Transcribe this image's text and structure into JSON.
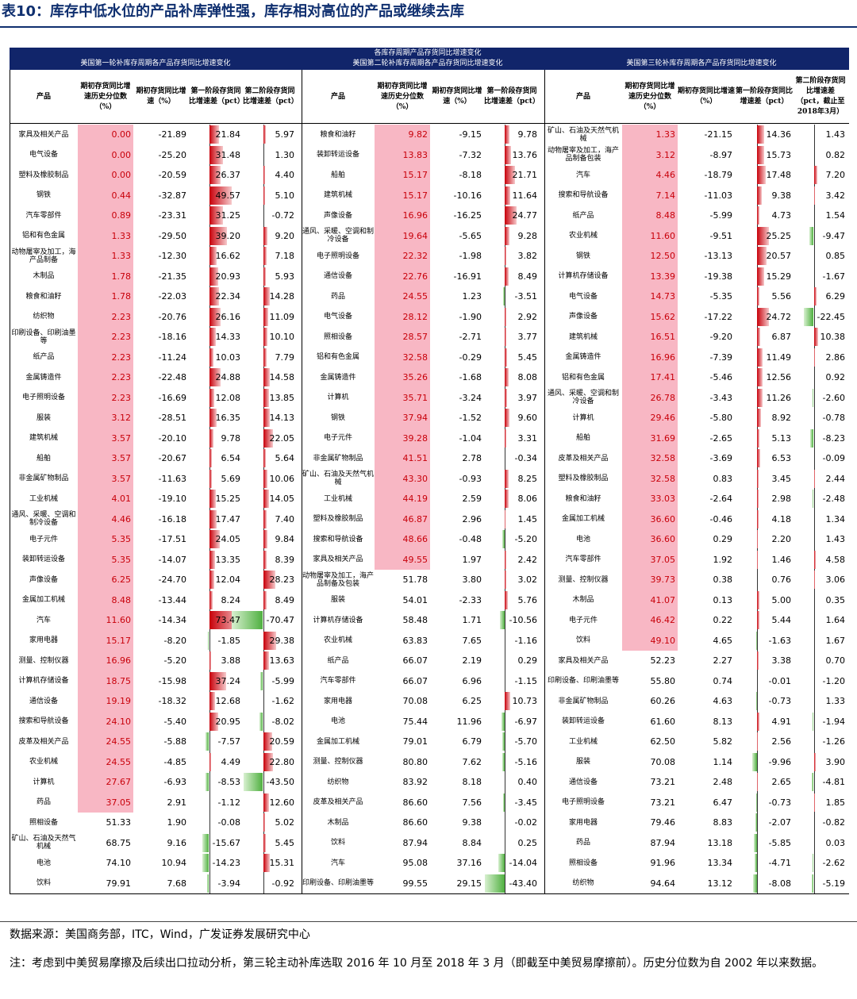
{
  "title": "表10：库存中低水位的产品补库弹性强，库存相对高位的产品或继续去库",
  "header": {
    "panel1_title": "美国第一轮补库存周期各产品存货同比增速变化",
    "center_title_line1": "各库存周期产品存货同比增速变化",
    "panel2_title": "美国第二轮补库存周期各产品存货同比增速变化",
    "panel3_title": "美国第三轮补库存周期各产品存货同比增速变化"
  },
  "columns": {
    "product": "产品",
    "pct": "期初存货同比增速历史分位数（%）",
    "yoy": "期初存货同比增速（%）",
    "d1": "第一阶段存货同比增速差（pct）",
    "d2": "第二阶段存货同比增速差（pct）",
    "d2_p3": "第二阶段存货同比增速差（pct，截止至2018年3月）"
  },
  "colors": {
    "pct_fill": "#f8b7c4",
    "bar_pos": "#c8000a",
    "bar_neg": "#4fb040",
    "header_bg": "#11256a"
  },
  "chart_data": {
    "type": "table",
    "bar_range": [
      -45,
      75
    ],
    "panels": [
      {
        "rows": [
          {
            "name": "家具及相关产品",
            "pct": "0.00",
            "yoy": "-21.89",
            "d1": "21.84",
            "d2": "5.97"
          },
          {
            "name": "电气设备",
            "pct": "0.00",
            "yoy": "-25.20",
            "d1": "31.48",
            "d2": "1.30"
          },
          {
            "name": "塑料及橡胶制品",
            "pct": "0.00",
            "yoy": "-20.59",
            "d1": "26.37",
            "d2": "4.40"
          },
          {
            "name": "钢铁",
            "pct": "0.44",
            "yoy": "-32.87",
            "d1": "49.57",
            "d2": "5.10"
          },
          {
            "name": "汽车零部件",
            "pct": "0.89",
            "yoy": "-23.31",
            "d1": "31.25",
            "d2": "-0.72"
          },
          {
            "name": "铝和有色金属",
            "pct": "1.33",
            "yoy": "-29.50",
            "d1": "39.20",
            "d2": "9.20"
          },
          {
            "name": "动物屠宰及加工，海产品制备",
            "pct": "1.33",
            "yoy": "-12.30",
            "d1": "16.62",
            "d2": "7.18"
          },
          {
            "name": "木制品",
            "pct": "1.78",
            "yoy": "-21.35",
            "d1": "20.93",
            "d2": "5.93"
          },
          {
            "name": "粮食和油籽",
            "pct": "1.78",
            "yoy": "-22.03",
            "d1": "22.34",
            "d2": "14.28"
          },
          {
            "name": "纺织物",
            "pct": "2.23",
            "yoy": "-20.76",
            "d1": "26.16",
            "d2": "11.09"
          },
          {
            "name": "印刷设备、印刷油墨等",
            "pct": "2.23",
            "yoy": "-18.16",
            "d1": "14.33",
            "d2": "10.10"
          },
          {
            "name": "纸产品",
            "pct": "2.23",
            "yoy": "-11.24",
            "d1": "10.03",
            "d2": "7.79"
          },
          {
            "name": "金属铸造件",
            "pct": "2.23",
            "yoy": "-22.48",
            "d1": "24.88",
            "d2": "14.58"
          },
          {
            "name": "电子照明设备",
            "pct": "2.23",
            "yoy": "-16.69",
            "d1": "12.08",
            "d2": "13.85"
          },
          {
            "name": "服装",
            "pct": "3.12",
            "yoy": "-28.51",
            "d1": "16.35",
            "d2": "14.13"
          },
          {
            "name": "建筑机械",
            "pct": "3.57",
            "yoy": "-20.10",
            "d1": "9.78",
            "d2": "22.05"
          },
          {
            "name": "船舶",
            "pct": "3.57",
            "yoy": "-20.67",
            "d1": "6.54",
            "d2": "5.64"
          },
          {
            "name": "非金属矿物制品",
            "pct": "3.57",
            "yoy": "-11.63",
            "d1": "5.69",
            "d2": "10.06"
          },
          {
            "name": "工业机械",
            "pct": "4.01",
            "yoy": "-19.10",
            "d1": "15.25",
            "d2": "14.05"
          },
          {
            "name": "通风、采暖、空调和制冷设备",
            "pct": "4.46",
            "yoy": "-16.18",
            "d1": "17.47",
            "d2": "7.40"
          },
          {
            "name": "电子元件",
            "pct": "5.35",
            "yoy": "-17.51",
            "d1": "24.05",
            "d2": "9.84"
          },
          {
            "name": "装卸转运设备",
            "pct": "5.35",
            "yoy": "-14.07",
            "d1": "13.35",
            "d2": "8.39"
          },
          {
            "name": "声像设备",
            "pct": "6.25",
            "yoy": "-24.70",
            "d1": "12.04",
            "d2": "28.23"
          },
          {
            "name": "金属加工机械",
            "pct": "8.48",
            "yoy": "-13.44",
            "d1": "8.24",
            "d2": "8.49"
          },
          {
            "name": "汽车",
            "pct": "11.60",
            "yoy": "-14.34",
            "d1": "73.47",
            "d2": "-70.47"
          },
          {
            "name": "家用电器",
            "pct": "15.17",
            "yoy": "-8.20",
            "d1": "-1.85",
            "d2": "29.38"
          },
          {
            "name": "测量、控制仪器",
            "pct": "16.96",
            "yoy": "-5.20",
            "d1": "3.88",
            "d2": "13.63"
          },
          {
            "name": "计算机存储设备",
            "pct": "18.75",
            "yoy": "-15.98",
            "d1": "37.24",
            "d2": "-5.99"
          },
          {
            "name": "通信设备",
            "pct": "19.19",
            "yoy": "-18.32",
            "d1": "12.68",
            "d2": "-1.62"
          },
          {
            "name": "搜索和导航设备",
            "pct": "24.10",
            "yoy": "-5.40",
            "d1": "20.95",
            "d2": "-8.02"
          },
          {
            "name": "皮革及相关产品",
            "pct": "24.55",
            "yoy": "-5.88",
            "d1": "-7.57",
            "d2": "20.59"
          },
          {
            "name": "农业机械",
            "pct": "24.55",
            "yoy": "-4.85",
            "d1": "4.49",
            "d2": "22.80"
          },
          {
            "name": "计算机",
            "pct": "27.67",
            "yoy": "-6.93",
            "d1": "-8.53",
            "d2": "-43.50"
          },
          {
            "name": "药品",
            "pct": "37.05",
            "yoy": "2.91",
            "d1": "-1.12",
            "d2": "12.60"
          },
          {
            "name": "照相设备",
            "pct": "51.33",
            "yoy": "1.90",
            "d1": "-0.08",
            "d2": "5.02"
          },
          {
            "name": "矿山、石油及天然气机械",
            "pct": "68.75",
            "yoy": "9.16",
            "d1": "-15.67",
            "d2": "5.45"
          },
          {
            "name": "电池",
            "pct": "74.10",
            "yoy": "10.94",
            "d1": "-14.23",
            "d2": "15.31"
          },
          {
            "name": "饮料",
            "pct": "79.91",
            "yoy": "7.68",
            "d1": "-3.94",
            "d2": "-0.92"
          }
        ]
      },
      {
        "rows": [
          {
            "name": "粮食和油籽",
            "pct": "9.82",
            "yoy": "-9.15",
            "d1": "9.78"
          },
          {
            "name": "装卸转运设备",
            "pct": "13.83",
            "yoy": "-7.32",
            "d1": "13.76"
          },
          {
            "name": "船舶",
            "pct": "15.17",
            "yoy": "-8.18",
            "d1": "21.71"
          },
          {
            "name": "建筑机械",
            "pct": "15.17",
            "yoy": "-10.16",
            "d1": "11.64"
          },
          {
            "name": "声像设备",
            "pct": "16.96",
            "yoy": "-16.25",
            "d1": "24.77"
          },
          {
            "name": "通风、采暖、空调和制冷设备",
            "pct": "19.64",
            "yoy": "-5.65",
            "d1": "9.28"
          },
          {
            "name": "电子照明设备",
            "pct": "22.32",
            "yoy": "-1.98",
            "d1": "3.82"
          },
          {
            "name": "通信设备",
            "pct": "22.76",
            "yoy": "-16.91",
            "d1": "8.49"
          },
          {
            "name": "药品",
            "pct": "24.55",
            "yoy": "1.23",
            "d1": "-3.51"
          },
          {
            "name": "电气设备",
            "pct": "28.12",
            "yoy": "-1.90",
            "d1": "2.92"
          },
          {
            "name": "照相设备",
            "pct": "28.57",
            "yoy": "-2.71",
            "d1": "3.77"
          },
          {
            "name": "铝和有色金属",
            "pct": "32.58",
            "yoy": "-0.29",
            "d1": "5.45"
          },
          {
            "name": "金属铸造件",
            "pct": "35.26",
            "yoy": "-1.68",
            "d1": "8.08"
          },
          {
            "name": "计算机",
            "pct": "35.71",
            "yoy": "-3.24",
            "d1": "3.97"
          },
          {
            "name": "钢铁",
            "pct": "37.94",
            "yoy": "-1.52",
            "d1": "9.60"
          },
          {
            "name": "电子元件",
            "pct": "39.28",
            "yoy": "-1.04",
            "d1": "3.31"
          },
          {
            "name": "非金属矿物制品",
            "pct": "41.51",
            "yoy": "2.78",
            "d1": "-0.34"
          },
          {
            "name": "矿山、石油及天然气机械",
            "pct": "43.30",
            "yoy": "-0.93",
            "d1": "8.25"
          },
          {
            "name": "工业机械",
            "pct": "44.19",
            "yoy": "2.59",
            "d1": "8.06"
          },
          {
            "name": "塑料及橡胶制品",
            "pct": "46.87",
            "yoy": "2.96",
            "d1": "1.45"
          },
          {
            "name": "搜索和导航设备",
            "pct": "48.66",
            "yoy": "-0.48",
            "d1": "-5.20"
          },
          {
            "name": "家具及相关产品",
            "pct": "49.55",
            "yoy": "1.97",
            "d1": "2.42"
          },
          {
            "name": "动物屠宰及加工，海产品制备及包装",
            "pct": "51.78",
            "yoy": "3.80",
            "d1": "3.02"
          },
          {
            "name": "服装",
            "pct": "54.01",
            "yoy": "-2.33",
            "d1": "5.76"
          },
          {
            "name": "计算机存储设备",
            "pct": "58.48",
            "yoy": "1.71",
            "d1": "-10.56"
          },
          {
            "name": "农业机械",
            "pct": "63.83",
            "yoy": "7.65",
            "d1": "-1.16"
          },
          {
            "name": "纸产品",
            "pct": "66.07",
            "yoy": "2.19",
            "d1": "0.29"
          },
          {
            "name": "汽车零部件",
            "pct": "66.07",
            "yoy": "6.96",
            "d1": "-1.15"
          },
          {
            "name": "家用电器",
            "pct": "70.08",
            "yoy": "6.25",
            "d1": "10.73"
          },
          {
            "name": "电池",
            "pct": "75.44",
            "yoy": "11.96",
            "d1": "-6.97"
          },
          {
            "name": "金属加工机械",
            "pct": "79.01",
            "yoy": "6.79",
            "d1": "-5.70"
          },
          {
            "name": "测量、控制仪器",
            "pct": "80.80",
            "yoy": "7.62",
            "d1": "-5.16"
          },
          {
            "name": "纺织物",
            "pct": "83.92",
            "yoy": "8.18",
            "d1": "0.40"
          },
          {
            "name": "皮革及相关产品",
            "pct": "86.60",
            "yoy": "7.56",
            "d1": "-3.45"
          },
          {
            "name": "木制品",
            "pct": "86.60",
            "yoy": "9.38",
            "d1": "-0.02"
          },
          {
            "name": "饮料",
            "pct": "87.94",
            "yoy": "8.84",
            "d1": "0.25"
          },
          {
            "name": "汽车",
            "pct": "95.08",
            "yoy": "37.16",
            "d1": "-14.04"
          },
          {
            "name": "印刷设备、印刷油墨等",
            "pct": "99.55",
            "yoy": "29.15",
            "d1": "-43.40"
          }
        ]
      },
      {
        "rows": [
          {
            "name": "矿山、石油及天然气机械",
            "pct": "1.33",
            "yoy": "-21.15",
            "d1": "14.36",
            "d2": "1.43"
          },
          {
            "name": "动物屠宰及加工，海产品制备包装",
            "pct": "3.12",
            "yoy": "-8.97",
            "d1": "15.73",
            "d2": "0.82"
          },
          {
            "name": "汽车",
            "pct": "4.46",
            "yoy": "-18.79",
            "d1": "17.48",
            "d2": "7.20"
          },
          {
            "name": "搜索和导航设备",
            "pct": "7.14",
            "yoy": "-11.03",
            "d1": "9.38",
            "d2": "3.42"
          },
          {
            "name": "纸产品",
            "pct": "8.48",
            "yoy": "-5.99",
            "d1": "4.73",
            "d2": "1.54"
          },
          {
            "name": "农业机械",
            "pct": "11.60",
            "yoy": "-9.51",
            "d1": "25.25",
            "d2": "-9.47"
          },
          {
            "name": "钢铁",
            "pct": "12.50",
            "yoy": "-13.13",
            "d1": "20.57",
            "d2": "0.85"
          },
          {
            "name": "计算机存储设备",
            "pct": "13.39",
            "yoy": "-19.38",
            "d1": "15.29",
            "d2": "-1.67"
          },
          {
            "name": "电气设备",
            "pct": "14.73",
            "yoy": "-5.35",
            "d1": "5.56",
            "d2": "6.29"
          },
          {
            "name": "声像设备",
            "pct": "15.62",
            "yoy": "-17.22",
            "d1": "24.72",
            "d2": "-22.45"
          },
          {
            "name": "建筑机械",
            "pct": "16.51",
            "yoy": "-9.20",
            "d1": "6.87",
            "d2": "10.38"
          },
          {
            "name": "金属铸造件",
            "pct": "16.96",
            "yoy": "-7.39",
            "d1": "11.49",
            "d2": "2.86"
          },
          {
            "name": "铝和有色金属",
            "pct": "17.41",
            "yoy": "-5.46",
            "d1": "12.56",
            "d2": "0.92"
          },
          {
            "name": "通风、采暖、空调和制冷设备",
            "pct": "26.78",
            "yoy": "-3.43",
            "d1": "11.26",
            "d2": "-2.60"
          },
          {
            "name": "计算机",
            "pct": "29.46",
            "yoy": "-5.80",
            "d1": "8.92",
            "d2": "-0.78"
          },
          {
            "name": "船舶",
            "pct": "31.69",
            "yoy": "-2.65",
            "d1": "5.13",
            "d2": "-8.23"
          },
          {
            "name": "皮革及相关产品",
            "pct": "32.58",
            "yoy": "-3.69",
            "d1": "6.53",
            "d2": "-0.09"
          },
          {
            "name": "塑料及橡胶制品",
            "pct": "32.58",
            "yoy": "0.83",
            "d1": "3.45",
            "d2": "2.44"
          },
          {
            "name": "粮食和油籽",
            "pct": "33.03",
            "yoy": "-2.64",
            "d1": "2.98",
            "d2": "-2.48"
          },
          {
            "name": "金属加工机械",
            "pct": "36.60",
            "yoy": "-0.46",
            "d1": "4.18",
            "d2": "1.34"
          },
          {
            "name": "电池",
            "pct": "36.60",
            "yoy": "0.29",
            "d1": "2.20",
            "d2": "1.43"
          },
          {
            "name": "汽车零部件",
            "pct": "37.05",
            "yoy": "1.92",
            "d1": "1.46",
            "d2": "4.58"
          },
          {
            "name": "测量、控制仪器",
            "pct": "39.73",
            "yoy": "0.38",
            "d1": "0.76",
            "d2": "3.06"
          },
          {
            "name": "木制品",
            "pct": "41.07",
            "yoy": "0.13",
            "d1": "5.00",
            "d2": "0.35"
          },
          {
            "name": "电子元件",
            "pct": "46.42",
            "yoy": "0.22",
            "d1": "5.44",
            "d2": "1.64"
          },
          {
            "name": "饮料",
            "pct": "49.10",
            "yoy": "4.65",
            "d1": "-1.63",
            "d2": "1.67"
          },
          {
            "name": "家具及相关产品",
            "pct": "52.23",
            "yoy": "2.27",
            "d1": "3.38",
            "d2": "0.70"
          },
          {
            "name": "印刷设备、印刷油墨等",
            "pct": "55.80",
            "yoy": "0.74",
            "d1": "-0.01",
            "d2": "-1.20"
          },
          {
            "name": "非金属矿物制品",
            "pct": "60.26",
            "yoy": "4.63",
            "d1": "-0.73",
            "d2": "1.33"
          },
          {
            "name": "装卸转运设备",
            "pct": "61.60",
            "yoy": "8.13",
            "d1": "4.91",
            "d2": "-1.94"
          },
          {
            "name": "工业机械",
            "pct": "62.50",
            "yoy": "5.82",
            "d1": "2.56",
            "d2": "-1.26"
          },
          {
            "name": "服装",
            "pct": "70.08",
            "yoy": "1.14",
            "d1": "-9.96",
            "d2": "3.90"
          },
          {
            "name": "通信设备",
            "pct": "73.21",
            "yoy": "2.48",
            "d1": "2.65",
            "d2": "-4.81"
          },
          {
            "name": "电子照明设备",
            "pct": "73.21",
            "yoy": "6.47",
            "d1": "-0.73",
            "d2": "1.85"
          },
          {
            "name": "家用电器",
            "pct": "79.46",
            "yoy": "8.83",
            "d1": "-2.07",
            "d2": "-0.82"
          },
          {
            "name": "药品",
            "pct": "87.94",
            "yoy": "13.18",
            "d1": "-5.85",
            "d2": "0.03"
          },
          {
            "name": "照相设备",
            "pct": "91.96",
            "yoy": "13.34",
            "d1": "-4.71",
            "d2": "-2.62"
          },
          {
            "name": "纺织物",
            "pct": "94.64",
            "yoy": "13.12",
            "d1": "-8.08",
            "d2": "-5.19"
          }
        ]
      }
    ]
  },
  "source": "数据来源：美国商务部，ITC，Wind，广发证券发展研究中心",
  "note": "注：考虑到中美贸易摩擦及后续出口拉动分析，第三轮主动补库选取 2016 年 10 月至 2018 年 3 月（即截至中美贸易摩擦前）。历史分位数为自 2002 年以来数据。"
}
